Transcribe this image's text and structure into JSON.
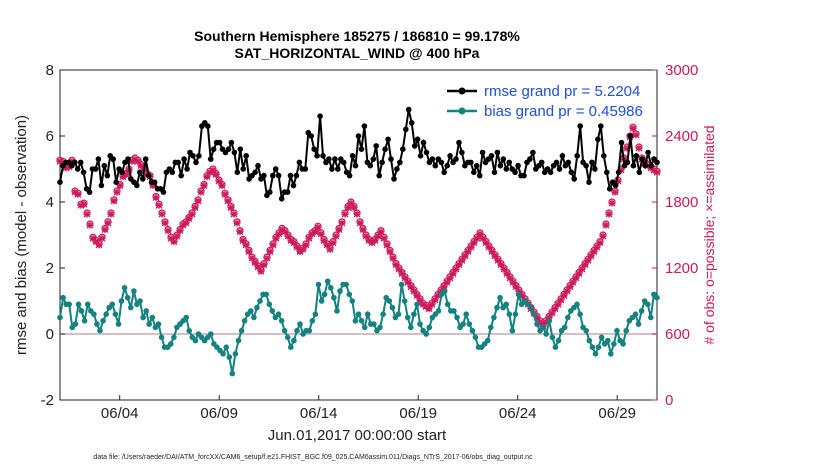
{
  "chart_data": {
    "type": "line",
    "title": "Southern Hemisphere 185275 / 186810 = 99.178%",
    "subtitle": "SAT_HORIZONTAL_WIND @ 400 hPa",
    "xlabel": "Jun.01,2017 00:00:00 start",
    "ylabel_left": "rmse and bias (model - observation)",
    "ylabel_right": "# of obs: o=possible; ×=assimilated",
    "footer": "data file: /Users/raeder/DAI/ATM_forcXX/CAM6_setup/f.e21.FHIST_BGC.f09_025.CAM6assim.011/Diags_NTrS_2017-06/obs_diag_output.nc",
    "x_tick_labels": [
      "06/04",
      "06/09",
      "06/14",
      "06/19",
      "06/24",
      "06/29"
    ],
    "x_tick_days": [
      4,
      9,
      14,
      19,
      24,
      29
    ],
    "xlim": [
      1,
      31
    ],
    "ylim_left": [
      -2,
      8
    ],
    "y_ticks_left": [
      "-2",
      "0",
      "2",
      "4",
      "6",
      "8"
    ],
    "ylim_right": [
      0,
      3000
    ],
    "y_ticks_right": [
      "0",
      "600",
      "1200",
      "1800",
      "2400",
      "3000"
    ],
    "grid": false,
    "zero_line": true,
    "legend_position": "top-right",
    "colors": {
      "rmse": "#000000",
      "bias": "#14827f",
      "obs": "#cc1a5c",
      "zero": "#c8a8b4"
    },
    "series": [
      {
        "name": "rmse grand pr = 5.2204",
        "values": [
          4.6,
          5.1,
          5.2,
          5.2,
          5.1,
          5.2,
          5.0,
          5.2,
          4.9,
          4.4,
          4.3,
          5.0,
          5.0,
          5.3,
          4.5,
          5.1,
          4.8,
          5.4,
          5.3,
          4.6,
          5.0,
          4.9,
          5.2,
          5.3,
          4.7,
          4.6,
          4.5,
          4.9,
          4.7,
          5.3,
          4.8,
          4.6,
          4.6,
          4.4,
          4.4,
          4.3,
          4.9,
          5.0,
          4.9,
          5.2,
          5.2,
          4.8,
          5.3,
          5.0,
          5.5,
          5.4,
          5.2,
          5.4,
          6.3,
          6.4,
          6.3,
          5.3,
          5.6,
          5.8,
          5.8,
          5.6,
          5.5,
          5.6,
          5.8,
          5.5,
          4.9,
          5.6,
          5.0,
          5.4,
          4.7,
          4.8,
          4.9,
          5.1,
          4.7,
          4.8,
          4.2,
          4.3,
          4.8,
          5.0,
          4.8,
          4.1,
          4.3,
          4.3,
          4.8,
          4.5,
          4.8,
          5.2,
          5.0,
          5.0,
          6.1,
          6.0,
          5.6,
          5.4,
          6.6,
          5.4,
          5.2,
          5.3,
          5.0,
          5.3,
          5.0,
          5.3,
          5.2,
          4.9,
          4.8,
          5.4,
          5.1,
          6.0,
          5.6,
          6.3,
          5.2,
          5.1,
          5.3,
          5.7,
          4.8,
          5.2,
          5.6,
          5.9,
          5.3,
          4.7,
          5.0,
          5.2,
          5.6,
          6.2,
          6.8,
          6.4,
          5.7,
          5.9,
          5.4,
          5.8,
          5.5,
          5.2,
          5.3,
          5.1,
          5.3,
          5.2,
          4.9,
          5.1,
          5.4,
          5.2,
          5.3,
          5.8,
          5.5,
          5.1,
          5.2,
          5.2,
          4.9,
          5.1,
          4.8,
          5.5,
          5.2,
          5.3,
          5.4,
          4.9,
          5.5,
          5.1,
          5.3,
          5.0,
          5.2,
          5.0,
          4.9,
          5.1,
          4.8,
          4.8,
          5.2,
          5.3,
          5.5,
          5.0,
          5.1,
          5.2,
          4.9,
          5.0,
          4.9,
          5.1,
          5.2,
          5.0,
          5.4,
          5.1,
          5.2,
          4.9,
          4.7,
          5.4,
          6.3,
          5.2,
          5.1,
          4.6,
          5.2,
          5.0,
          5.9,
          6.3,
          5.4,
          4.9,
          4.4,
          4.6,
          4.5,
          4.9,
          5.8,
          5.1,
          5.2,
          6.0,
          5.1,
          5.4,
          4.9,
          5.3,
          5.1,
          5.5,
          5.1,
          5.3,
          5.2
        ]
      },
      {
        "name": "bias grand pr = 0.45986",
        "values": [
          0.5,
          1.1,
          0.9,
          0.9,
          0.2,
          0.3,
          0.9,
          0.7,
          0.4,
          0.9,
          0.7,
          0.6,
          0.3,
          0.1,
          0.4,
          0.6,
          0.8,
          0.9,
          0.6,
          0.3,
          1.0,
          1.4,
          1.1,
          0.8,
          1.3,
          0.9,
          1.0,
          0.5,
          0.7,
          0.3,
          0.5,
          0.2,
          0.3,
          -0.1,
          -0.4,
          -0.4,
          -0.3,
          -0.1,
          0.2,
          0.3,
          0.4,
          0.5,
          0.1,
          -0.1,
          -0.2,
          0.0,
          -0.1,
          -0.2,
          -0.1,
          0.0,
          -0.3,
          -0.4,
          -0.5,
          -0.6,
          -0.4,
          -0.7,
          -1.2,
          -0.6,
          -0.2,
          0.1,
          0.4,
          0.6,
          0.7,
          0.5,
          0.8,
          1.0,
          1.2,
          1.2,
          0.9,
          0.7,
          0.5,
          0.6,
          0.4,
          0.1,
          -0.1,
          -0.4,
          -0.2,
          0.1,
          0.3,
          0.0,
          0.1,
          0.1,
          0.4,
          0.6,
          1.5,
          1.0,
          1.2,
          1.6,
          1.4,
          1.1,
          0.7,
          1.3,
          1.5,
          1.5,
          1.2,
          1.0,
          0.4,
          0.6,
          0.4,
          0.2,
          0.6,
          0.3,
          0.3,
          0.1,
          0.2,
          0.6,
          1.1,
          1.0,
          0.8,
          0.5,
          0.6,
          1.5,
          1.0,
          0.5,
          0.2,
          0.6,
          0.9,
          0.3,
          0.1,
          0.0,
          0.2,
          0.5,
          0.6,
          0.7,
          1.2,
          1.3,
          0.9,
          0.7,
          0.7,
          0.5,
          0.2,
          0.3,
          0.6,
          0.3,
          0.1,
          -0.1,
          -0.4,
          -0.4,
          -0.3,
          -0.2,
          0.2,
          0.5,
          0.8,
          1.1,
          0.8,
          0.9,
          0.6,
          0.1,
          0.6,
          1.2,
          0.9,
          1.0,
          0.9,
          0.8,
          0.6,
          0.3,
          0.1,
          0.2,
          0.0,
          0.4,
          -0.1,
          -0.4,
          -0.2,
          0.1,
          0.2,
          0.5,
          0.7,
          0.8,
          0.9,
          0.6,
          0.2,
          0.1,
          -0.2,
          -0.4,
          -0.6,
          -0.4,
          -0.1,
          -0.3,
          -0.2,
          -0.6,
          -0.3,
          0.1,
          -0.2,
          -0.3,
          0.1,
          0.4,
          0.5,
          0.6,
          0.3,
          0.7,
          1.0,
          0.9,
          0.5,
          1.2,
          1.1
        ]
      },
      {
        "name": "possible",
        "values": [
          2180,
          2170,
          2120,
          2130,
          2180,
          1900,
          1880,
          1780,
          1790,
          1700,
          1600,
          1480,
          1450,
          1420,
          1480,
          1560,
          1620,
          1700,
          1820,
          1900,
          1960,
          2040,
          2060,
          2100,
          2180,
          2200,
          2180,
          2140,
          2110,
          2060,
          2040,
          1960,
          1850,
          1780,
          1700,
          1620,
          1550,
          1480,
          1450,
          1500,
          1550,
          1600,
          1620,
          1660,
          1700,
          1760,
          1820,
          1900,
          1960,
          2040,
          2080,
          2100,
          2060,
          2000,
          1960,
          1880,
          1820,
          1760,
          1700,
          1620,
          1540,
          1460,
          1420,
          1360,
          1300,
          1260,
          1220,
          1180,
          1240,
          1300,
          1360,
          1420,
          1480,
          1520,
          1560,
          1540,
          1500,
          1460,
          1440,
          1400,
          1360,
          1380,
          1420,
          1480,
          1520,
          1540,
          1580,
          1520,
          1460,
          1420,
          1380,
          1440,
          1500,
          1560,
          1620,
          1700,
          1760,
          1800,
          1760,
          1700,
          1620,
          1560,
          1500,
          1460,
          1440,
          1460,
          1500,
          1540,
          1480,
          1420,
          1360,
          1300,
          1240,
          1200,
          1160,
          1120,
          1080,
          1040,
          1000,
          960,
          920,
          880,
          860,
          840,
          880,
          920,
          960,
          1000,
          1040,
          1080,
          1120,
          1160,
          1200,
          1240,
          1280,
          1320,
          1360,
          1400,
          1440,
          1480,
          1520,
          1480,
          1440,
          1400,
          1360,
          1320,
          1280,
          1240,
          1200,
          1160,
          1120,
          1080,
          1040,
          1000,
          960,
          920,
          880,
          840,
          800,
          760,
          720,
          680,
          720,
          760,
          800,
          840,
          880,
          920,
          960,
          1000,
          1040,
          1080,
          1120,
          1160,
          1200,
          1240,
          1280,
          1320,
          1360,
          1400,
          1440,
          1500,
          1600,
          1700,
          1800,
          1900,
          2000,
          2100,
          2200,
          2300,
          2400,
          2480,
          2420,
          2300,
          2200,
          2160,
          2140,
          2120,
          2100,
          2080
        ],
        "marker": "o"
      },
      {
        "name": "assimilated",
        "values": [
          2170,
          2160,
          2110,
          2120,
          2170,
          1890,
          1870,
          1770,
          1780,
          1690,
          1590,
          1470,
          1440,
          1410,
          1470,
          1550,
          1610,
          1690,
          1810,
          1890,
          1950,
          2030,
          2050,
          2090,
          2170,
          2190,
          2170,
          2130,
          2100,
          2050,
          2030,
          1950,
          1840,
          1770,
          1690,
          1610,
          1540,
          1470,
          1440,
          1490,
          1540,
          1590,
          1610,
          1650,
          1690,
          1750,
          1810,
          1890,
          1950,
          2030,
          2070,
          2090,
          2050,
          1990,
          1950,
          1870,
          1810,
          1750,
          1690,
          1610,
          1530,
          1450,
          1410,
          1350,
          1290,
          1250,
          1210,
          1170,
          1230,
          1290,
          1350,
          1410,
          1470,
          1510,
          1550,
          1530,
          1490,
          1450,
          1430,
          1390,
          1350,
          1370,
          1410,
          1470,
          1510,
          1530,
          1570,
          1510,
          1450,
          1410,
          1370,
          1430,
          1490,
          1550,
          1610,
          1690,
          1750,
          1790,
          1750,
          1690,
          1610,
          1550,
          1490,
          1450,
          1430,
          1450,
          1490,
          1530,
          1470,
          1410,
          1350,
          1290,
          1230,
          1190,
          1150,
          1110,
          1070,
          1030,
          990,
          950,
          910,
          870,
          850,
          830,
          870,
          910,
          950,
          990,
          1030,
          1070,
          1110,
          1150,
          1190,
          1230,
          1270,
          1310,
          1350,
          1390,
          1430,
          1470,
          1510,
          1470,
          1430,
          1390,
          1350,
          1310,
          1270,
          1230,
          1190,
          1150,
          1110,
          1070,
          1030,
          990,
          950,
          910,
          870,
          830,
          790,
          750,
          710,
          670,
          710,
          750,
          790,
          830,
          870,
          910,
          950,
          990,
          1030,
          1070,
          1110,
          1150,
          1190,
          1230,
          1270,
          1310,
          1350,
          1390,
          1430,
          1490,
          1590,
          1690,
          1790,
          1890,
          1990,
          2090,
          2190,
          2290,
          2390,
          2470,
          2410,
          2290,
          2190,
          2150,
          2130,
          2110,
          2090,
          2070
        ],
        "marker": "x"
      }
    ]
  }
}
